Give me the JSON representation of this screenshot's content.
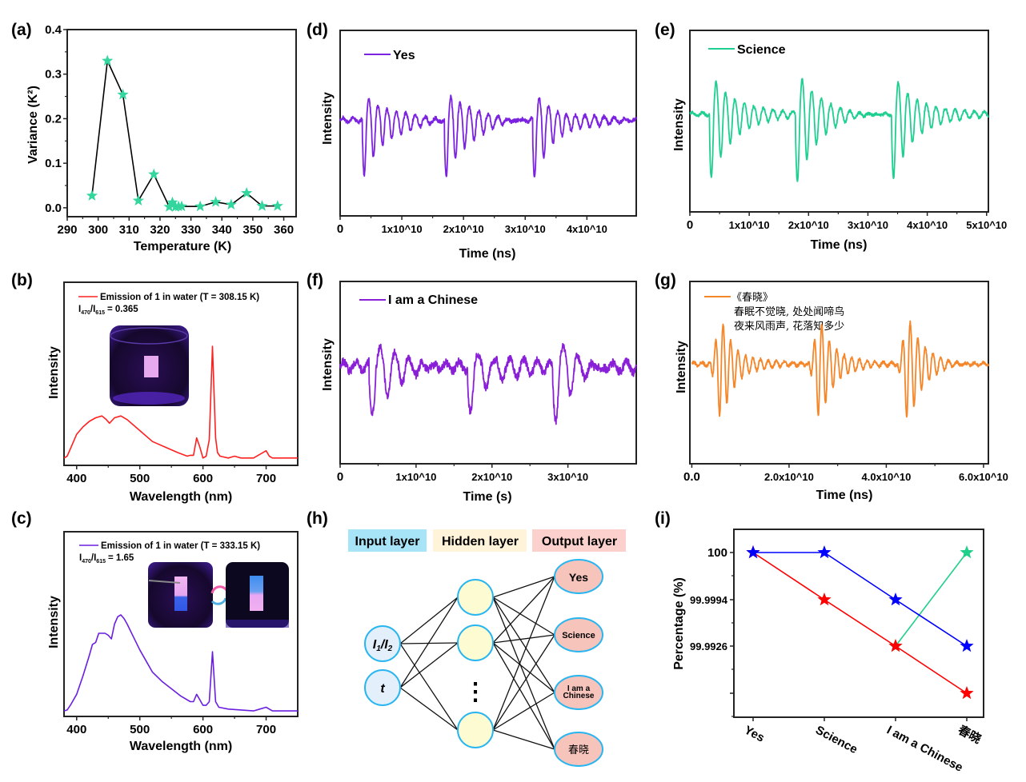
{
  "panel_labels": {
    "a": "(a)",
    "b": "(b)",
    "c": "(c)",
    "d": "(d)",
    "e": "(e)",
    "f": "(f)",
    "g": "(g)",
    "h": "(h)",
    "i": "(i)"
  },
  "chart_data": [
    {
      "id": "a",
      "type": "line",
      "xlabel": "Temperature (K)",
      "ylabel": "Variance (K²)",
      "xlim": [
        290,
        364
      ],
      "ylim": [
        -0.02,
        0.4
      ],
      "xticks": [
        290,
        300,
        310,
        320,
        330,
        340,
        350,
        360
      ],
      "xtick_labels": [
        "290",
        "300",
        "310",
        "320",
        "330",
        "340",
        "350",
        "360"
      ],
      "yticks": [
        0,
        0.1,
        0.2,
        0.3,
        0.4
      ],
      "ytick_labels": [
        "0.0",
        "0.1",
        "0.2",
        "0.3",
        "0.4"
      ],
      "series": [
        {
          "marker": "star",
          "marker_color": "#33d69c",
          "line_color": "#000000",
          "x": [
            298,
            303,
            308,
            313,
            318,
            323,
            324,
            325,
            326,
            327,
            333,
            338,
            343,
            348,
            353,
            358
          ],
          "y": [
            0.027,
            0.33,
            0.254,
            0.016,
            0.075,
            0.002,
            0.012,
            0.002,
            0.003,
            0.003,
            0.003,
            0.013,
            0.007,
            0.033,
            0.004,
            0.004
          ]
        }
      ]
    },
    {
      "id": "b",
      "type": "line",
      "xlabel": "Wavelength (nm)",
      "ylabel": "Intensity",
      "xlim": [
        380,
        750
      ],
      "xticks": [
        400,
        500,
        600,
        700
      ],
      "xtick_labels": [
        "400",
        "500",
        "600",
        "700"
      ],
      "legend": {
        "label": "Emission of 1 in water (T = 308.15 K)",
        "ratio": {
          "symbol": "I",
          "num_sub": "470",
          "den_sub": "615",
          "value": "= 0.365"
        }
      },
      "series": [
        {
          "name": "Emission of 1 in water (T = 308.15 K)",
          "color": "#ff2020",
          "x": [
            380,
            385,
            390,
            400,
            410,
            420,
            430,
            440,
            447,
            452,
            460,
            470,
            480,
            490,
            500,
            520,
            540,
            560,
            575,
            580,
            585,
            590,
            595,
            600,
            605,
            610,
            615,
            620,
            623,
            627,
            640,
            650,
            660,
            680,
            690,
            700,
            705,
            710,
            730,
            750
          ],
          "y": [
            0.04,
            0.05,
            0.09,
            0.17,
            0.21,
            0.24,
            0.26,
            0.27,
            0.25,
            0.23,
            0.26,
            0.27,
            0.25,
            0.22,
            0.19,
            0.13,
            0.1,
            0.07,
            0.05,
            0.055,
            0.055,
            0.15,
            0.1,
            0.04,
            0.05,
            0.14,
            0.65,
            0.15,
            0.07,
            0.05,
            0.04,
            0.05,
            0.04,
            0.04,
            0.06,
            0.08,
            0.05,
            0.04,
            0.04,
            0.04
          ]
        }
      ]
    },
    {
      "id": "c",
      "type": "line",
      "xlabel": "Wavelength (nm)",
      "ylabel": "Intensity",
      "xlim": [
        380,
        750
      ],
      "xticks": [
        400,
        500,
        600,
        700
      ],
      "xtick_labels": [
        "400",
        "500",
        "600",
        "700"
      ],
      "legend": {
        "label": "Emission of 1 in water (T = 333.15 K)",
        "ratio": {
          "symbol": "I",
          "num_sub": "470",
          "den_sub": "615",
          "value": "= 1.65"
        }
      },
      "series": [
        {
          "name": "Emission of 1 in water (T = 333.15 K)",
          "color": "#6a1fe0",
          "x": [
            380,
            385,
            390,
            400,
            410,
            420,
            425,
            430,
            435,
            440,
            445,
            450,
            455,
            460,
            465,
            470,
            475,
            480,
            490,
            500,
            510,
            520,
            535,
            550,
            565,
            580,
            585,
            590,
            595,
            600,
            605,
            610,
            615,
            620,
            625,
            640,
            660,
            680,
            690,
            700,
            705,
            710,
            730,
            750
          ],
          "y": [
            0.03,
            0.035,
            0.06,
            0.12,
            0.22,
            0.33,
            0.39,
            0.4,
            0.45,
            0.45,
            0.45,
            0.44,
            0.42,
            0.5,
            0.54,
            0.55,
            0.53,
            0.5,
            0.43,
            0.36,
            0.3,
            0.24,
            0.19,
            0.15,
            0.11,
            0.08,
            0.08,
            0.12,
            0.09,
            0.06,
            0.06,
            0.08,
            0.35,
            0.08,
            0.05,
            0.04,
            0.035,
            0.03,
            0.04,
            0.05,
            0.04,
            0.03,
            0.03,
            0.03
          ]
        }
      ]
    },
    {
      "id": "d",
      "type": "line",
      "xlabel": "Time (ns)",
      "ylabel": "Intensity",
      "xlim": [
        0,
        48000000000.0
      ],
      "xticks": [
        0,
        10000000000.0,
        20000000000.0,
        30000000000.0,
        40000000000.0
      ],
      "xtick_labels": [
        "0",
        "1x10^10",
        "2x10^10",
        "3x10^10",
        "4x10^10"
      ],
      "series": [
        {
          "name": "Yes",
          "color": "#7b22e0",
          "burst_onsets": [
            3600000000.0,
            16900000000.0,
            31200000000.0
          ]
        }
      ]
    },
    {
      "id": "e",
      "type": "line",
      "xlabel": "Time (ns)",
      "ylabel": "Intensity",
      "xlim": [
        0,
        50300000000.0
      ],
      "xticks": [
        0,
        10000000000.0,
        20000000000.0,
        30000000000.0,
        40000000000.0,
        50000000000.0
      ],
      "xtick_labels": [
        "0",
        "1x10^10",
        "2x10^10",
        "3x10^10",
        "4x10^10",
        "5x10^10"
      ],
      "series": [
        {
          "name": "Science",
          "color": "#1fcf8f",
          "burst_onsets": [
            3300000000.0,
            17800000000.0,
            34000000000.0
          ]
        }
      ]
    },
    {
      "id": "f",
      "type": "line",
      "xlabel": "Time (s)",
      "ylabel": "Intensity",
      "xlim": [
        0,
        39000000000.0
      ],
      "xticks": [
        0,
        10000000000.0,
        20000000000.0,
        30000000000.0
      ],
      "xtick_labels": [
        "0",
        "1x10^10",
        "2x10^10",
        "3x10^10"
      ],
      "series": [
        {
          "name": "I am a Chinese",
          "color": "#8a1fd8",
          "burst_onsets": [
            3800000000.0,
            16800000000.0,
            28000000000.0
          ]
        }
      ]
    },
    {
      "id": "g",
      "type": "line",
      "xlabel": "Time (ns)",
      "ylabel": "Intensity",
      "xlim": [
        -400000000.0,
        61000000000.0
      ],
      "xticks": [
        0,
        20000000000.0,
        40000000000.0,
        60000000000.0
      ],
      "xtick_labels": [
        "0.0",
        "2.0x10^10",
        "4.0x10^10",
        "6.0x10^10"
      ],
      "series": [
        {
          "name": "《春晓》",
          "color": "#f5862a",
          "burst_onsets": [
            3800000000.0,
            24100000000.0,
            42300000000.0
          ]
        }
      ],
      "legend_text": [
        "春眠不觉晓, 处处闻啼鸟",
        "夜来风雨声, 花落知多少"
      ]
    },
    {
      "id": "i",
      "type": "line",
      "ylabel": "Percentage (%)",
      "categories": [
        "Yes",
        "Science",
        "I am a Chinese",
        "春晓"
      ],
      "yticks": [
        100,
        99.9994,
        99.9926,
        99.9858
      ],
      "ytick_labels": [
        "100",
        "99.9994",
        "99.9926",
        ""
      ],
      "series": [
        {
          "color": "#1fd08a",
          "marker": "star",
          "values": [
            null,
            null,
            99.9926,
            100
          ]
        },
        {
          "color": "#ff0000",
          "marker": "star",
          "values": [
            100,
            99.9994,
            99.9926,
            99.9858
          ]
        },
        {
          "color": "#0000ff",
          "marker": "star",
          "values": [
            100,
            100,
            99.9994,
            99.9926
          ]
        }
      ]
    }
  ],
  "network": {
    "headers": {
      "input": "Input layer",
      "hidden": "Hidden layer",
      "output": "Output layer"
    },
    "header_colors": {
      "input": "#a8e4f7",
      "hidden": "#fff3d9",
      "output": "#fcd0cc"
    },
    "inputs": {
      "ratio": {
        "symbol": "I",
        "sub1": "1",
        "sub2": "2"
      },
      "time": "t"
    },
    "outputs": [
      "Yes",
      "Science",
      "I am a",
      "Chinese",
      "春晓"
    ],
    "ellipsis": "⋮"
  }
}
